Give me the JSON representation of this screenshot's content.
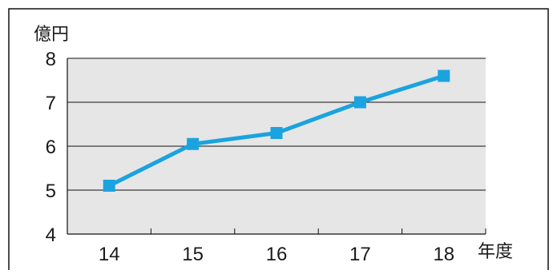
{
  "chart_data": {
    "type": "line",
    "title": "",
    "ylabel": "億円",
    "xlabel": "年度",
    "x": [
      "14",
      "15",
      "16",
      "17",
      "18"
    ],
    "series": [
      {
        "values": [
          5.1,
          6.05,
          6.3,
          7.0,
          7.6
        ]
      }
    ],
    "ylim": [
      4,
      8
    ],
    "yticks": [
      "4",
      "5",
      "6",
      "7",
      "8"
    ],
    "grid": true,
    "colors": {
      "line": "#1aa3df",
      "marker": "#1aa3df",
      "plot_background": "#e6e6e6",
      "grid": "#111111",
      "frame": "#111111"
    },
    "marker": "square"
  }
}
